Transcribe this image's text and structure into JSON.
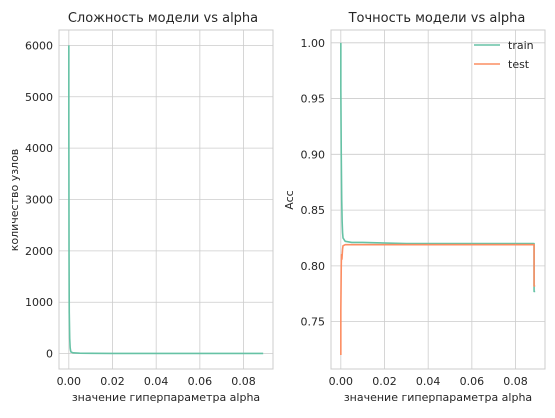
{
  "colors": {
    "train": "#66c2a5",
    "test": "#fc8d62",
    "grid": "#cccccc",
    "text": "#262626"
  },
  "chart_data": [
    {
      "type": "line",
      "title": "Сложность модели vs alpha",
      "xlabel": "значение гиперпараметра alpha",
      "ylabel": "количество узлов",
      "xlim": [
        -0.0045,
        0.0935
      ],
      "ylim": [
        -300,
        6300
      ],
      "xticks": [
        0.0,
        0.02,
        0.04,
        0.06,
        0.08
      ],
      "xtick_labels": [
        "0.00",
        "0.02",
        "0.04",
        "0.06",
        "0.08"
      ],
      "yticks": [
        0,
        1000,
        2000,
        3000,
        4000,
        5000,
        6000
      ],
      "ytick_labels": [
        "0",
        "1000",
        "2000",
        "3000",
        "4000",
        "5000",
        "6000"
      ],
      "grid": true,
      "series": [
        {
          "color": "#66c2a5",
          "x": [
            0.0,
            0.0,
            0.0001,
            0.0002,
            0.0004,
            0.0006,
            0.0008,
            0.001,
            0.002,
            0.005,
            0.01,
            0.02,
            0.04,
            0.06,
            0.08,
            0.089
          ],
          "y": [
            6000,
            4500,
            2000,
            800,
            300,
            120,
            60,
            30,
            15,
            7,
            5,
            3,
            3,
            3,
            3,
            3
          ]
        }
      ]
    },
    {
      "type": "line",
      "title": "Точность модели  vs alpha",
      "xlabel": "значение гиперпараметра alpha",
      "ylabel": "Acc",
      "xlim": [
        -0.0045,
        0.0935
      ],
      "ylim": [
        0.7075,
        1.0115
      ],
      "xticks": [
        0.0,
        0.02,
        0.04,
        0.06,
        0.08
      ],
      "xtick_labels": [
        "0.00",
        "0.02",
        "0.04",
        "0.06",
        "0.08"
      ],
      "yticks": [
        0.75,
        0.8,
        0.85,
        0.9,
        0.95,
        1.0
      ],
      "ytick_labels": [
        "0.75",
        "0.80",
        "0.85",
        "0.90",
        "0.95",
        "1.00"
      ],
      "grid": true,
      "legend": {
        "position": "top-right",
        "entries": [
          "train",
          "test"
        ]
      },
      "series": [
        {
          "name": "train",
          "color": "#66c2a5",
          "x": [
            0.0,
            0.0,
            0.0002,
            0.0004,
            0.0006,
            0.0008,
            0.001,
            0.002,
            0.005,
            0.01,
            0.03,
            0.06,
            0.088,
            0.0885,
            0.0885,
            0.089
          ],
          "y": [
            1.0,
            0.96,
            0.9,
            0.86,
            0.84,
            0.83,
            0.825,
            0.822,
            0.821,
            0.821,
            0.82,
            0.82,
            0.82,
            0.82,
            0.777,
            0.777
          ]
        },
        {
          "name": "test",
          "color": "#fc8d62",
          "x": [
            0.0,
            0.0,
            0.0002,
            0.0003,
            0.0005,
            0.0008,
            0.001,
            0.002,
            0.005,
            0.01,
            0.03,
            0.06,
            0.088,
            0.0885,
            0.0885,
            0.089
          ],
          "y": [
            0.72,
            0.76,
            0.8,
            0.81,
            0.806,
            0.815,
            0.818,
            0.819,
            0.819,
            0.819,
            0.819,
            0.819,
            0.819,
            0.819,
            0.782,
            0.782
          ]
        }
      ]
    }
  ]
}
